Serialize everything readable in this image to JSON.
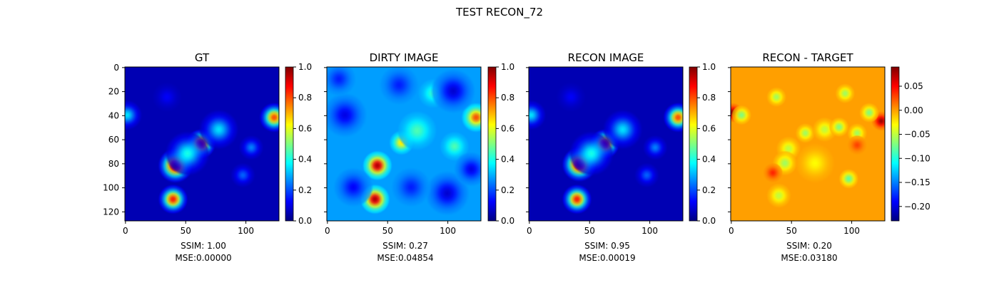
{
  "figure": {
    "suptitle": "TEST RECON_72"
  },
  "chart_data": [
    {
      "type": "heatmap",
      "title": "GT",
      "colormap": "jet",
      "x_ticks": [
        0,
        50,
        100
      ],
      "y_ticks": [
        0,
        20,
        40,
        60,
        80,
        100,
        120
      ],
      "x_range": [
        0,
        127
      ],
      "y_range": [
        0,
        127
      ],
      "colorbar_ticks": [
        "0.0",
        "0.2",
        "0.4",
        "0.6",
        "0.8",
        "1.0"
      ],
      "colorbar_range": [
        0.0,
        1.0
      ],
      "background_value": 0.05,
      "blobs": [
        {
          "x": 42,
          "y": 82,
          "value": 1.0,
          "r": 7
        },
        {
          "x": 63,
          "y": 64,
          "value": 0.95,
          "r": 6
        },
        {
          "x": 40,
          "y": 110,
          "value": 0.85,
          "r": 6
        },
        {
          "x": 124,
          "y": 42,
          "value": 0.8,
          "r": 6
        },
        {
          "x": 2,
          "y": 40,
          "value": 0.35,
          "r": 6
        },
        {
          "x": 78,
          "y": 52,
          "value": 0.35,
          "r": 8
        },
        {
          "x": 52,
          "y": 72,
          "value": 0.4,
          "r": 9
        },
        {
          "x": 105,
          "y": 67,
          "value": 0.25,
          "r": 5
        },
        {
          "x": 98,
          "y": 90,
          "value": 0.22,
          "r": 5
        },
        {
          "x": 35,
          "y": 25,
          "value": 0.12,
          "r": 6
        }
      ],
      "ssim_label": "SSIM: 1.00",
      "mse_label": "MSE:0.00000"
    },
    {
      "type": "heatmap",
      "title": "DIRTY IMAGE",
      "colormap": "jet",
      "x_ticks": [
        0,
        50,
        100
      ],
      "y_ticks": [
        0,
        20,
        40,
        60,
        80,
        100,
        120
      ],
      "x_range": [
        0,
        127
      ],
      "y_range": [
        0,
        127
      ],
      "colorbar_ticks": [
        "0.0",
        "0.2",
        "0.4",
        "0.6",
        "0.8",
        "1.0"
      ],
      "colorbar_range": [
        0.0,
        1.0
      ],
      "background_value": 0.28,
      "blobs": [
        {
          "x": 42,
          "y": 82,
          "value": 0.95,
          "r": 6
        },
        {
          "x": 40,
          "y": 110,
          "value": 0.95,
          "r": 6
        },
        {
          "x": 124,
          "y": 42,
          "value": 0.8,
          "r": 6
        },
        {
          "x": 62,
          "y": 63,
          "value": 0.65,
          "r": 5
        },
        {
          "x": 75,
          "y": 53,
          "value": 0.45,
          "r": 8
        },
        {
          "x": 88,
          "y": 22,
          "value": 0.42,
          "r": 6
        },
        {
          "x": 106,
          "y": 66,
          "value": 0.45,
          "r": 6
        },
        {
          "x": 15,
          "y": 40,
          "value": 0.1,
          "r": 9
        },
        {
          "x": 105,
          "y": 20,
          "value": 0.08,
          "r": 9
        },
        {
          "x": 100,
          "y": 105,
          "value": 0.08,
          "r": 9
        },
        {
          "x": 22,
          "y": 100,
          "value": 0.12,
          "r": 8
        },
        {
          "x": 70,
          "y": 100,
          "value": 0.15,
          "r": 8
        },
        {
          "x": 120,
          "y": 85,
          "value": 0.1,
          "r": 7
        },
        {
          "x": 10,
          "y": 10,
          "value": 0.15,
          "r": 7
        },
        {
          "x": 60,
          "y": 15,
          "value": 0.15,
          "r": 8
        }
      ],
      "ssim_label": "SSIM: 0.27",
      "mse_label": "MSE:0.04854"
    },
    {
      "type": "heatmap",
      "title": "RECON IMAGE",
      "colormap": "jet",
      "x_ticks": [
        0,
        50,
        100
      ],
      "y_ticks": [
        0,
        20,
        40,
        60,
        80,
        100,
        120
      ],
      "x_range": [
        0,
        127
      ],
      "y_range": [
        0,
        127
      ],
      "colorbar_ticks": [
        "0.0",
        "0.2",
        "0.4",
        "0.6",
        "0.8",
        "1.0"
      ],
      "colorbar_range": [
        0.0,
        1.0
      ],
      "background_value": 0.05,
      "blobs": [
        {
          "x": 42,
          "y": 81,
          "value": 1.0,
          "r": 7
        },
        {
          "x": 63,
          "y": 64,
          "value": 0.95,
          "r": 6
        },
        {
          "x": 40,
          "y": 110,
          "value": 0.85,
          "r": 6
        },
        {
          "x": 124,
          "y": 42,
          "value": 0.8,
          "r": 6
        },
        {
          "x": 2,
          "y": 40,
          "value": 0.35,
          "r": 6
        },
        {
          "x": 78,
          "y": 52,
          "value": 0.35,
          "r": 8
        },
        {
          "x": 52,
          "y": 72,
          "value": 0.4,
          "r": 9
        },
        {
          "x": 105,
          "y": 67,
          "value": 0.25,
          "r": 5
        },
        {
          "x": 98,
          "y": 90,
          "value": 0.22,
          "r": 5
        },
        {
          "x": 35,
          "y": 25,
          "value": 0.12,
          "r": 6
        }
      ],
      "ssim_label": "SSIM: 0.95",
      "mse_label": "MSE:0.00019"
    },
    {
      "type": "heatmap",
      "title": "RECON - TARGET",
      "colormap": "jet",
      "x_ticks": [
        0,
        50,
        100
      ],
      "y_ticks": [
        0,
        20,
        40,
        60,
        80,
        100,
        120
      ],
      "x_range": [
        0,
        127
      ],
      "y_range": [
        0,
        127
      ],
      "colorbar_ticks": [
        "0.05",
        "0.00",
        "−0.05",
        "−0.10",
        "−0.15",
        "−0.20"
      ],
      "colorbar_tick_values": [
        0.05,
        0.0,
        -0.05,
        -0.1,
        -0.15,
        -0.2
      ],
      "colorbar_range": [
        -0.23,
        0.09
      ],
      "background_value": 0.0,
      "blobs": [
        {
          "x": 2,
          "y": 38,
          "value": 0.09,
          "r": 4
        },
        {
          "x": 125,
          "y": 45,
          "value": 0.08,
          "r": 4
        },
        {
          "x": 9,
          "y": 40,
          "value": -0.07,
          "r": 4
        },
        {
          "x": 38,
          "y": 25,
          "value": -0.06,
          "r": 4
        },
        {
          "x": 95,
          "y": 22,
          "value": -0.06,
          "r": 4
        },
        {
          "x": 115,
          "y": 38,
          "value": -0.07,
          "r": 4
        },
        {
          "x": 62,
          "y": 55,
          "value": -0.06,
          "r": 4
        },
        {
          "x": 78,
          "y": 52,
          "value": -0.05,
          "r": 5
        },
        {
          "x": 90,
          "y": 50,
          "value": -0.07,
          "r": 4
        },
        {
          "x": 105,
          "y": 55,
          "value": -0.06,
          "r": 4
        },
        {
          "x": 48,
          "y": 68,
          "value": -0.05,
          "r": 5
        },
        {
          "x": 45,
          "y": 80,
          "value": -0.06,
          "r": 5
        },
        {
          "x": 35,
          "y": 88,
          "value": 0.04,
          "r": 4
        },
        {
          "x": 98,
          "y": 93,
          "value": -0.08,
          "r": 4
        },
        {
          "x": 40,
          "y": 107,
          "value": -0.05,
          "r": 5
        },
        {
          "x": 70,
          "y": 80,
          "value": -0.03,
          "r": 8
        },
        {
          "x": 105,
          "y": 65,
          "value": 0.03,
          "r": 4
        }
      ],
      "ssim_label": "SSIM: 0.20",
      "mse_label": "MSE:0.03180"
    }
  ]
}
